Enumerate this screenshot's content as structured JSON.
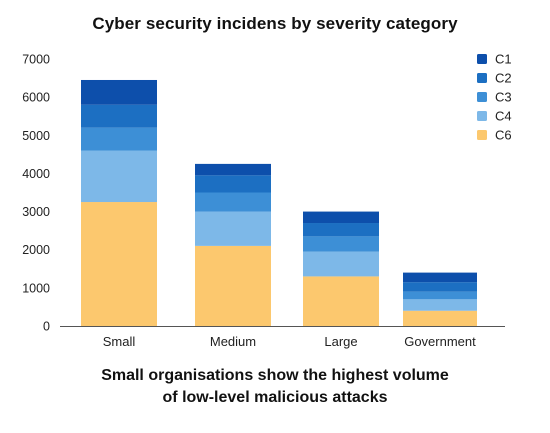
{
  "chart_data": {
    "type": "bar",
    "stacked": true,
    "title": "Cyber security incidens by severity category",
    "caption_lines": [
      "Small organisations show the highest volume",
      "of low-level malicious attacks"
    ],
    "categories": [
      "Small",
      "Medium",
      "Large",
      "Government"
    ],
    "series": [
      {
        "name": "C6",
        "color": "#fcc86e",
        "values": [
          3250,
          2100,
          1300,
          400
        ]
      },
      {
        "name": "C4",
        "color": "#7db8e8",
        "values": [
          1350,
          900,
          650,
          300
        ]
      },
      {
        "name": "C3",
        "color": "#3d8fd6",
        "values": [
          600,
          500,
          400,
          200
        ]
      },
      {
        "name": "C2",
        "color": "#1c6fc2",
        "values": [
          600,
          450,
          350,
          250
        ]
      },
      {
        "name": "C1",
        "color": "#0d4fab",
        "values": [
          650,
          300,
          300,
          250
        ]
      }
    ],
    "legend_order": [
      "C1",
      "C2",
      "C3",
      "C4",
      "C6"
    ],
    "legend_position": "top-right",
    "ylim": [
      0,
      7000
    ],
    "yticks": [
      0,
      1000,
      2000,
      3000,
      4000,
      5000,
      6000,
      7000
    ],
    "grid": false,
    "xlabel": "",
    "ylabel": ""
  }
}
